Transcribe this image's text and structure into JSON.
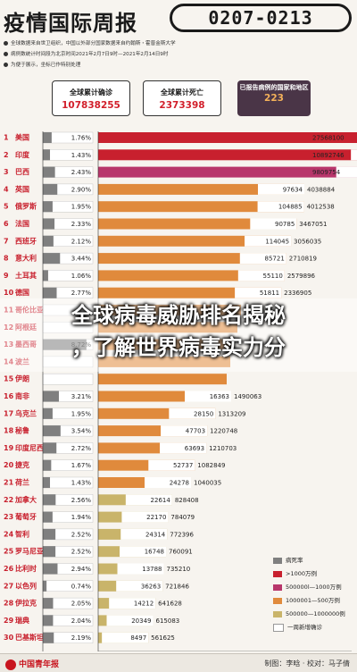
{
  "header": {
    "title": "疫情国际周报",
    "date_range": "0207-0213",
    "notes": [
      "全球数据来自世卫组织，中国以外部分国家数据来自约翰斯・霍普金斯大学",
      "病例数统计时间段为北京时间2021年2月7日9时—2021年2月14日9时",
      "为便于展示，坐标已作特别处理"
    ]
  },
  "summary": {
    "cases_label": "全球累计确诊",
    "cases_value": "107838255",
    "deaths_label": "全球累计死亡",
    "deaths_value": "2373398",
    "countries_label": "已报告病例的国家和地区",
    "countries_value": "223"
  },
  "colors": {
    "over_10m": "#c8202e",
    "5m_10m": "#b8366b",
    "1m_5m": "#e08a3c",
    "500k_1m": "#c9b46a",
    "death_rate": "#7f7f7f",
    "axis": "#333333"
  },
  "overlay_text": [
    "全球病毒威胁排名揭秘",
    "，了解世界病毒实力分"
  ],
  "legend": [
    {
      "label": "病死率",
      "color": "#7f7f7f"
    },
    {
      "label": ">1000万例",
      "color": "#c8202e"
    },
    {
      "label": "500000l—1000万例",
      "color": "#b8366b"
    },
    {
      "label": "1000001—500万例",
      "color": "#e08a3c"
    },
    {
      "label": "500000—1000000例",
      "color": "#c9b46a"
    },
    {
      "label": "一周新增确诊",
      "color": "#ffffff"
    }
  ],
  "footer": {
    "logo": "中国青年报",
    "credits": "制图：李晗 · 校对：马子倩"
  },
  "chart_data": {
    "type": "bar",
    "xlim": [
      0,
      7000000
    ],
    "xticks": [
      "500000",
      "1000000",
      "1500000",
      "2000000",
      "7000000"
    ],
    "rows": [
      {
        "rank": "1",
        "country": "美国",
        "death_rate": "1.76%",
        "weekly": "665646",
        "total": "27568100",
        "cat": "over_10m"
      },
      {
        "rank": "2",
        "country": "印度",
        "death_rate": "1.43%",
        "weekly": "78442",
        "total": "10892746",
        "cat": "over_10m"
      },
      {
        "rank": "3",
        "country": "巴西",
        "death_rate": "2.43%",
        "weekly": "362589",
        "total": "9809754",
        "cat": "5m_10m"
      },
      {
        "rank": "4",
        "country": "英国",
        "death_rate": "2.90%",
        "weekly": "97634",
        "total": "4038884",
        "cat": "1m_5m"
      },
      {
        "rank": "5",
        "country": "俄罗斯",
        "death_rate": "1.95%",
        "weekly": "104885",
        "total": "4012538",
        "cat": "1m_5m"
      },
      {
        "rank": "6",
        "country": "法国",
        "death_rate": "2.33%",
        "weekly": "90785",
        "total": "3467051",
        "cat": "1m_5m"
      },
      {
        "rank": "7",
        "country": "西班牙",
        "death_rate": "2.12%",
        "weekly": "114045",
        "total": "3056035",
        "cat": "1m_5m"
      },
      {
        "rank": "8",
        "country": "意大利",
        "death_rate": "3.44%",
        "weekly": "85721",
        "total": "2710819",
        "cat": "1m_5m"
      },
      {
        "rank": "9",
        "country": "土耳其",
        "death_rate": "1.06%",
        "weekly": "55110",
        "total": "2579896",
        "cat": "1m_5m"
      },
      {
        "rank": "10",
        "country": "德国",
        "death_rate": "2.77%",
        "weekly": "51811",
        "total": "2336905",
        "cat": "1m_5m"
      },
      {
        "rank": "11",
        "country": "哥伦比亚",
        "death_rate": "",
        "weekly": "",
        "total": "",
        "cat": "1m_5m"
      },
      {
        "rank": "12",
        "country": "阿根廷",
        "death_rate": "",
        "weekly": "",
        "total": "",
        "cat": "1m_5m"
      },
      {
        "rank": "13",
        "country": "墨西哥",
        "death_rate": "8.72%",
        "weekly": "",
        "total": "",
        "cat": "1m_5m"
      },
      {
        "rank": "14",
        "country": "波兰",
        "death_rate": "",
        "weekly": "",
        "total": "",
        "cat": "1m_5m"
      },
      {
        "rank": "15",
        "country": "伊朗",
        "death_rate": "",
        "weekly": "",
        "total": "",
        "cat": "1m_5m"
      },
      {
        "rank": "16",
        "country": "南非",
        "death_rate": "3.21%",
        "weekly": "16363",
        "total": "1490063",
        "cat": "1m_5m"
      },
      {
        "rank": "17",
        "country": "乌克兰",
        "death_rate": "1.95%",
        "weekly": "28150",
        "total": "1313209",
        "cat": "1m_5m"
      },
      {
        "rank": "18",
        "country": "秘鲁",
        "death_rate": "3.54%",
        "weekly": "47703",
        "total": "1220748",
        "cat": "1m_5m"
      },
      {
        "rank": "19",
        "country": "印度尼西亚",
        "death_rate": "2.72%",
        "weekly": "63693",
        "total": "1210703",
        "cat": "1m_5m"
      },
      {
        "rank": "20",
        "country": "捷克",
        "death_rate": "1.67%",
        "weekly": "52737",
        "total": "1082849",
        "cat": "1m_5m"
      },
      {
        "rank": "21",
        "country": "荷兰",
        "death_rate": "1.43%",
        "weekly": "24278",
        "total": "1040035",
        "cat": "1m_5m"
      },
      {
        "rank": "22",
        "country": "加拿大",
        "death_rate": "2.56%",
        "weekly": "22614",
        "total": "828408",
        "cat": "500k_1m"
      },
      {
        "rank": "23",
        "country": "葡萄牙",
        "death_rate": "1.94%",
        "weekly": "22170",
        "total": "784079",
        "cat": "500k_1m"
      },
      {
        "rank": "24",
        "country": "智利",
        "death_rate": "2.52%",
        "weekly": "24314",
        "total": "772396",
        "cat": "500k_1m"
      },
      {
        "rank": "25",
        "country": "罗马尼亚",
        "death_rate": "2.52%",
        "weekly": "16748",
        "total": "760091",
        "cat": "500k_1m"
      },
      {
        "rank": "26",
        "country": "比利时",
        "death_rate": "2.94%",
        "weekly": "13788",
        "total": "735210",
        "cat": "500k_1m"
      },
      {
        "rank": "27",
        "country": "以色列",
        "death_rate": "0.74%",
        "weekly": "36263",
        "total": "721846",
        "cat": "500k_1m"
      },
      {
        "rank": "28",
        "country": "伊拉克",
        "death_rate": "2.05%",
        "weekly": "14212",
        "total": "641628",
        "cat": "500k_1m"
      },
      {
        "rank": "29",
        "country": "瑞典",
        "death_rate": "2.04%",
        "weekly": "20349",
        "total": "615083",
        "cat": "500k_1m"
      },
      {
        "rank": "30",
        "country": "巴基斯坦",
        "death_rate": "2.19%",
        "weekly": "8497",
        "total": "561625",
        "cat": "500k_1m"
      }
    ]
  }
}
